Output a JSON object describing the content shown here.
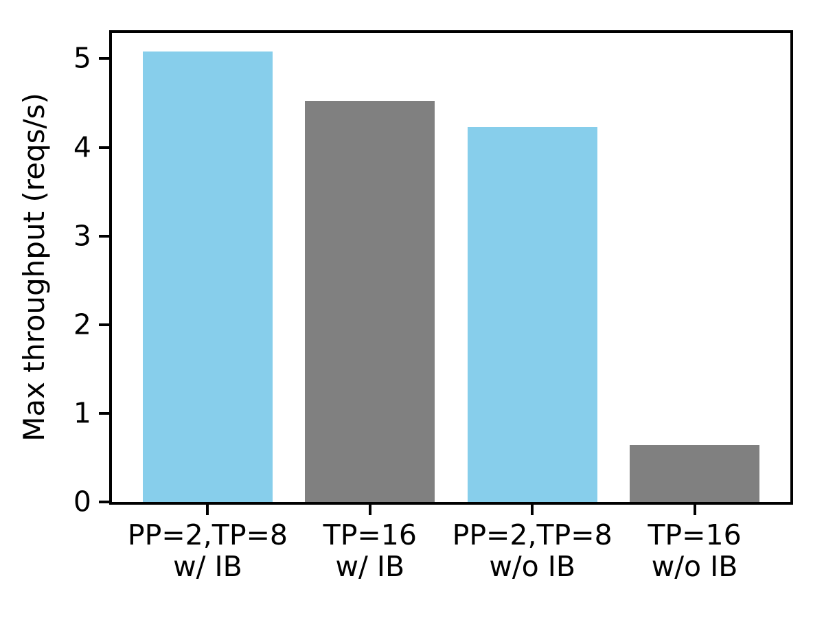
{
  "figure": {
    "background": "#ffffff",
    "axis_color": "#000000",
    "text_color": "#000000"
  },
  "chart_data": {
    "type": "bar",
    "title": "",
    "xlabel": "",
    "ylabel": "Max throughput (reqs/s)",
    "categories": [
      "PP=2,TP=8\nw/ IB",
      "TP=16\nw/ IB",
      "PP=2,TP=8\nw/o IB",
      "TP=16\nw/o IB"
    ],
    "values": [
      5.08,
      4.52,
      4.23,
      0.64
    ],
    "bar_colors": [
      "#87ceeb",
      "#808080",
      "#87ceeb",
      "#808080"
    ],
    "bar_color_legend": {
      "skyblue": "#87ceeb",
      "gray": "#808080"
    },
    "ylim": [
      0,
      5.29
    ],
    "yticks": [
      0,
      1,
      2,
      3,
      4,
      5
    ],
    "xlim": [
      -0.59,
      3.59
    ],
    "bar_width": 0.8,
    "grid": false,
    "legend_position": "none"
  }
}
